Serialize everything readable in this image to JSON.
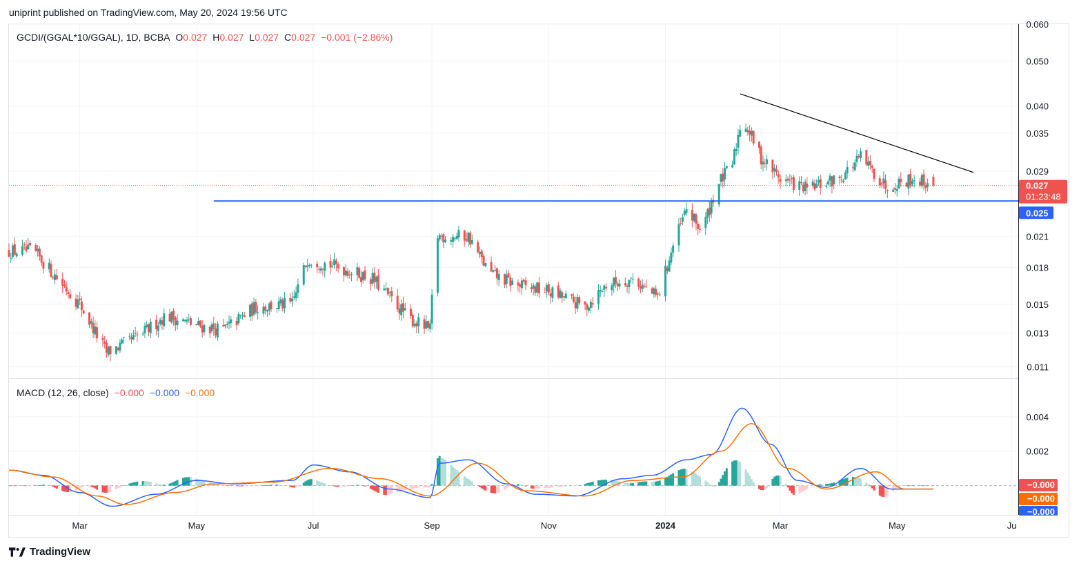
{
  "header": {
    "publish_text": "uniprint published on TradingView.com, May 20, 2024 19:56 UTC"
  },
  "main_legend": {
    "symbol": "GCDI/(GGAL*10/GGAL), 1D, BCBA",
    "o_label": "O",
    "o_value": "0.027",
    "h_label": "H",
    "h_value": "0.027",
    "l_label": "L",
    "l_value": "0.027",
    "c_label": "C",
    "c_value": "0.027",
    "change": "−0.001 (−2.86%)"
  },
  "macd_legend": {
    "name": "MACD (12, 26, close)",
    "hist_value": "−0.000",
    "macd_value": "−0.000",
    "signal_value": "−0.000"
  },
  "price_badges": {
    "last_price": "0.027",
    "countdown": "01:23:48",
    "line_price": "0.025"
  },
  "macd_badges": {
    "hist": "−0.000",
    "signal": "−0.000",
    "macd": "−0.000"
  },
  "footer": {
    "brand": "TradingView"
  },
  "colors": {
    "up": "#26a69a",
    "down": "#ef5350",
    "macd_line": "#2962ff",
    "signal_line": "#ff6d00",
    "support_line": "#2962ff",
    "trend_line": "#000000"
  },
  "chart_data": [
    {
      "type": "candlestick",
      "title": "GCDI/(GGAL*10/GGAL), 1D, BCBA",
      "scale": "log",
      "y_ticks": [
        "0.060",
        "0.050",
        "0.040",
        "0.035",
        "0.029",
        "0.021",
        "0.018",
        "0.015",
        "0.013",
        "0.011"
      ],
      "y_tick_values": [
        0.06,
        0.05,
        0.04,
        0.035,
        0.029,
        0.021,
        0.018,
        0.015,
        0.013,
        0.011
      ],
      "x_ticks": [
        "Mar",
        "May",
        "Jul",
        "Sep",
        "Nov",
        "2024",
        "Mar",
        "May",
        "Ju"
      ],
      "x_tick_dates": [
        "2023-03-01",
        "2023-05-01",
        "2023-07-01",
        "2023-09-01",
        "2023-11-01",
        "2024-01-01",
        "2024-03-01",
        "2024-05-01",
        "2024-06-30"
      ],
      "date_range": [
        "2023-01-23",
        "2024-07-03"
      ],
      "y_range": [
        0.0104,
        0.06
      ],
      "grid": true,
      "anchors": [
        {
          "date": "2023-01-23",
          "price": 0.0195
        },
        {
          "date": "2023-02-05",
          "price": 0.0195
        },
        {
          "date": "2023-03-01",
          "price": 0.015
        },
        {
          "date": "2023-03-15",
          "price": 0.0118
        },
        {
          "date": "2023-04-01",
          "price": 0.0128
        },
        {
          "date": "2023-04-15",
          "price": 0.0142
        },
        {
          "date": "2023-05-01",
          "price": 0.0135
        },
        {
          "date": "2023-05-15",
          "price": 0.0132
        },
        {
          "date": "2023-06-01",
          "price": 0.0148
        },
        {
          "date": "2023-06-20",
          "price": 0.015
        },
        {
          "date": "2023-06-28",
          "price": 0.0188
        },
        {
          "date": "2023-07-15",
          "price": 0.018
        },
        {
          "date": "2023-08-01",
          "price": 0.017
        },
        {
          "date": "2023-08-20",
          "price": 0.014
        },
        {
          "date": "2023-08-31",
          "price": 0.0132
        },
        {
          "date": "2023-09-03",
          "price": 0.021
        },
        {
          "date": "2023-09-20",
          "price": 0.021
        },
        {
          "date": "2023-10-01",
          "price": 0.0175
        },
        {
          "date": "2023-10-15",
          "price": 0.0165
        },
        {
          "date": "2023-11-01",
          "price": 0.016
        },
        {
          "date": "2023-11-20",
          "price": 0.0148
        },
        {
          "date": "2023-12-01",
          "price": 0.0165
        },
        {
          "date": "2023-12-15",
          "price": 0.017
        },
        {
          "date": "2023-12-28",
          "price": 0.0155
        },
        {
          "date": "2024-01-05",
          "price": 0.02
        },
        {
          "date": "2024-01-12",
          "price": 0.024
        },
        {
          "date": "2024-01-20",
          "price": 0.0215
        },
        {
          "date": "2024-01-28",
          "price": 0.027
        },
        {
          "date": "2024-02-05",
          "price": 0.03
        },
        {
          "date": "2024-02-10",
          "price": 0.038
        },
        {
          "date": "2024-02-20",
          "price": 0.031
        },
        {
          "date": "2024-03-01",
          "price": 0.028
        },
        {
          "date": "2024-03-15",
          "price": 0.0265
        },
        {
          "date": "2024-04-01",
          "price": 0.028
        },
        {
          "date": "2024-04-12",
          "price": 0.031
        },
        {
          "date": "2024-04-25",
          "price": 0.027
        },
        {
          "date": "2024-05-10",
          "price": 0.028
        },
        {
          "date": "2024-05-20",
          "price": 0.027
        }
      ],
      "last_price": 0.027,
      "support_line": {
        "price": 0.025,
        "from": "2023-05-10",
        "to": "2024-07-03"
      },
      "trend_line": {
        "from": {
          "date": "2024-02-09",
          "price": 0.0425
        },
        "to": {
          "date": "2024-06-10",
          "price": 0.0288
        }
      }
    },
    {
      "type": "line",
      "title": "MACD (12, 26, close)",
      "y_ticks": [
        "0.004",
        "0.002"
      ],
      "y_tick_values": [
        0.004,
        0.002
      ],
      "y_range": [
        -0.0017,
        0.0062
      ],
      "series": [
        {
          "name": "MACD",
          "color": "#2962ff",
          "points": [
            [
              "2023-01-23",
              0.0009
            ],
            [
              "2023-02-10",
              0.0006
            ],
            [
              "2023-03-01",
              -0.0004
            ],
            [
              "2023-03-18",
              -0.0012
            ],
            [
              "2023-04-10",
              -0.0005
            ],
            [
              "2023-05-01",
              0.0003
            ],
            [
              "2023-05-20",
              0.0001
            ],
            [
              "2023-06-20",
              0.0003
            ],
            [
              "2023-07-01",
              0.0012
            ],
            [
              "2023-07-20",
              0.0008
            ],
            [
              "2023-08-10",
              -0.0002
            ],
            [
              "2023-08-31",
              -0.0007
            ],
            [
              "2023-09-05",
              0.0013
            ],
            [
              "2023-09-20",
              0.0015
            ],
            [
              "2023-10-10",
              0.0001
            ],
            [
              "2023-10-25",
              -0.0005
            ],
            [
              "2023-11-15",
              -0.0006
            ],
            [
              "2023-12-10",
              0.0004
            ],
            [
              "2023-12-25",
              0.0006
            ],
            [
              "2024-01-12",
              0.0015
            ],
            [
              "2024-01-25",
              0.0018
            ],
            [
              "2024-02-10",
              0.0045
            ],
            [
              "2024-02-25",
              0.0024
            ],
            [
              "2024-03-10",
              0.0003
            ],
            [
              "2024-03-25",
              -0.0001
            ],
            [
              "2024-04-12",
              0.001
            ],
            [
              "2024-04-28",
              -0.0002
            ],
            [
              "2024-05-20",
              -0.0002
            ]
          ]
        },
        {
          "name": "Signal",
          "color": "#ff6d00",
          "points": [
            [
              "2023-01-23",
              0.0009
            ],
            [
              "2023-02-15",
              0.0005
            ],
            [
              "2023-03-10",
              -0.0006
            ],
            [
              "2023-03-25",
              -0.0011
            ],
            [
              "2023-04-20",
              -0.0004
            ],
            [
              "2023-05-10",
              0.0001
            ],
            [
              "2023-06-10",
              0.0002
            ],
            [
              "2023-07-10",
              0.001
            ],
            [
              "2023-08-05",
              0.0004
            ],
            [
              "2023-08-31",
              -0.0006
            ],
            [
              "2023-09-25",
              0.0013
            ],
            [
              "2023-10-20",
              -0.0003
            ],
            [
              "2023-11-20",
              -0.0006
            ],
            [
              "2023-12-15",
              0.0003
            ],
            [
              "2024-01-10",
              0.0005
            ],
            [
              "2024-01-30",
              0.002
            ],
            [
              "2024-02-15",
              0.0036
            ],
            [
              "2024-03-05",
              0.001
            ],
            [
              "2024-03-25",
              -0.0002
            ],
            [
              "2024-04-20",
              0.0008
            ],
            [
              "2024-05-05",
              -0.0002
            ],
            [
              "2024-05-20",
              -0.0002
            ]
          ]
        }
      ]
    }
  ]
}
